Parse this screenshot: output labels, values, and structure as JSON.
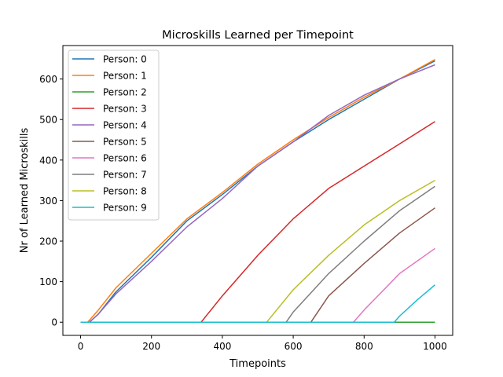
{
  "chart_data": {
    "type": "line",
    "title": "Microskills Learned per Timepoint",
    "xlabel": "Timepoints",
    "ylabel": "Nr of Learned Microskills",
    "xlim": [
      -50,
      1050
    ],
    "ylim": [
      -32.5,
      682.5
    ],
    "xticks": [
      0,
      200,
      400,
      600,
      800,
      1000
    ],
    "yticks": [
      0,
      100,
      200,
      300,
      400,
      500,
      600
    ],
    "grid": false,
    "legend_position": "upper-left",
    "series": [
      {
        "name": "Person: 0",
        "color": "#1f77b4",
        "points": [
          [
            0,
            0
          ],
          [
            25,
            0
          ],
          [
            50,
            20
          ],
          [
            100,
            75
          ],
          [
            200,
            160
          ],
          [
            300,
            250
          ],
          [
            400,
            315
          ],
          [
            500,
            385
          ],
          [
            600,
            445
          ],
          [
            700,
            500
          ],
          [
            800,
            550
          ],
          [
            900,
            600
          ],
          [
            1000,
            645
          ]
        ]
      },
      {
        "name": "Person: 1",
        "color": "#ff7f0e",
        "points": [
          [
            0,
            0
          ],
          [
            20,
            0
          ],
          [
            50,
            30
          ],
          [
            100,
            85
          ],
          [
            200,
            170
          ],
          [
            300,
            255
          ],
          [
            400,
            320
          ],
          [
            500,
            390
          ],
          [
            600,
            450
          ],
          [
            700,
            505
          ],
          [
            800,
            555
          ],
          [
            900,
            600
          ],
          [
            1000,
            648
          ]
        ]
      },
      {
        "name": "Person: 2",
        "color": "#2ca02c",
        "points": [
          [
            0,
            0
          ],
          [
            1000,
            0
          ]
        ]
      },
      {
        "name": "Person: 3",
        "color": "#d62728",
        "points": [
          [
            0,
            0
          ],
          [
            340,
            0
          ],
          [
            400,
            65
          ],
          [
            500,
            165
          ],
          [
            600,
            255
          ],
          [
            700,
            330
          ],
          [
            800,
            385
          ],
          [
            900,
            440
          ],
          [
            1000,
            495
          ]
        ]
      },
      {
        "name": "Person: 4",
        "color": "#9467bd",
        "points": [
          [
            0,
            0
          ],
          [
            25,
            0
          ],
          [
            50,
            20
          ],
          [
            100,
            70
          ],
          [
            200,
            150
          ],
          [
            300,
            235
          ],
          [
            400,
            305
          ],
          [
            500,
            385
          ],
          [
            600,
            445
          ],
          [
            700,
            510
          ],
          [
            800,
            560
          ],
          [
            900,
            600
          ],
          [
            1000,
            635
          ]
        ]
      },
      {
        "name": "Person: 5",
        "color": "#8c564b",
        "points": [
          [
            0,
            0
          ],
          [
            650,
            0
          ],
          [
            700,
            65
          ],
          [
            800,
            145
          ],
          [
            900,
            220
          ],
          [
            1000,
            282
          ]
        ]
      },
      {
        "name": "Person: 6",
        "color": "#e377c2",
        "points": [
          [
            0,
            0
          ],
          [
            770,
            0
          ],
          [
            800,
            30
          ],
          [
            900,
            120
          ],
          [
            1000,
            182
          ]
        ]
      },
      {
        "name": "Person: 7",
        "color": "#7f7f7f",
        "points": [
          [
            0,
            0
          ],
          [
            580,
            0
          ],
          [
            600,
            25
          ],
          [
            700,
            120
          ],
          [
            800,
            200
          ],
          [
            900,
            275
          ],
          [
            1000,
            335
          ]
        ]
      },
      {
        "name": "Person: 8",
        "color": "#bcbd22",
        "points": [
          [
            0,
            0
          ],
          [
            525,
            0
          ],
          [
            600,
            80
          ],
          [
            700,
            165
          ],
          [
            800,
            240
          ],
          [
            900,
            300
          ],
          [
            1000,
            350
          ]
        ]
      },
      {
        "name": "Person: 9",
        "color": "#17becf",
        "points": [
          [
            0,
            0
          ],
          [
            885,
            0
          ],
          [
            900,
            15
          ],
          [
            950,
            55
          ],
          [
            1000,
            92
          ]
        ]
      }
    ]
  }
}
